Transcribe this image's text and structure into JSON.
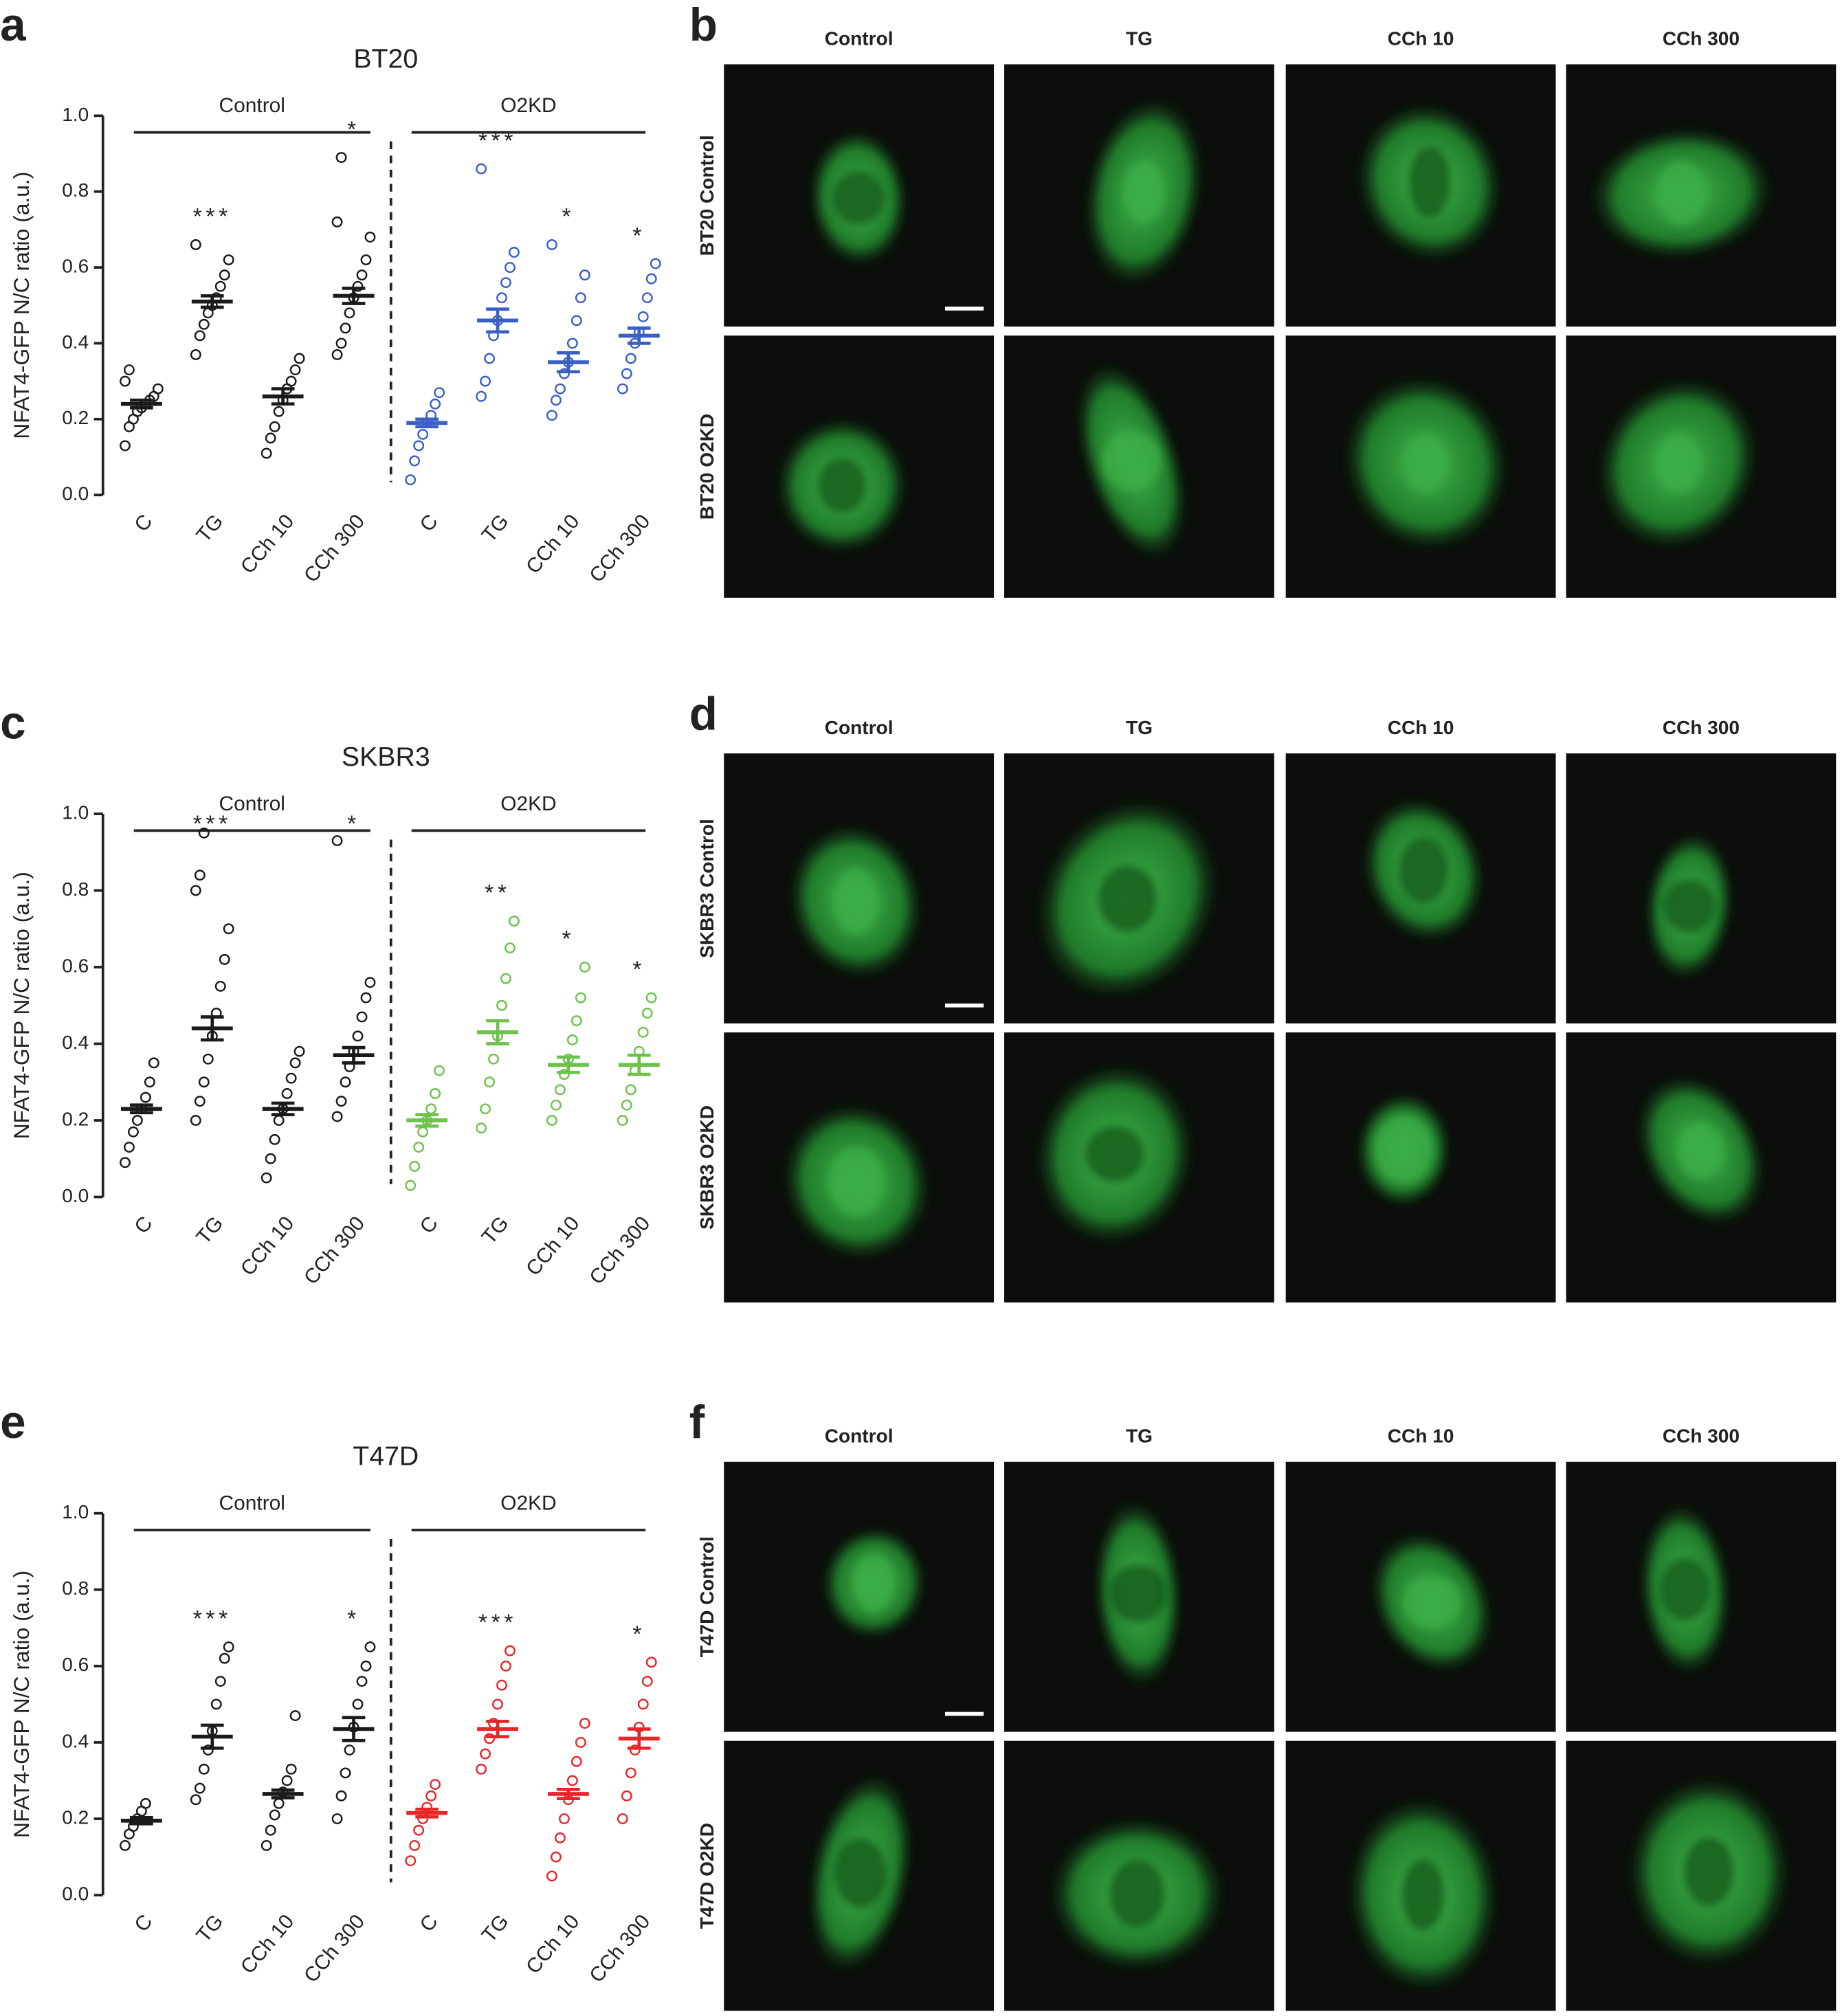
{
  "chart_data": [
    {
      "type": "dotplot",
      "panel_label": "a",
      "title": "BT20",
      "y_label": "NFAT4-GFP N/C ratio (a.u.)",
      "ylim": [
        0,
        1
      ],
      "yticks": [
        {
          "value": 0,
          "label": "0.0"
        },
        0.2,
        0.4,
        0.6,
        0.8,
        {
          "value": 1,
          "label": "1.0"
        }
      ],
      "groups": [
        {
          "label": "Control",
          "color": "#1a1a1a",
          "categories": [
            "C",
            "TG",
            "CCh 10",
            "CCh 300"
          ],
          "means": [
            0.24,
            0.51,
            0.26,
            0.525
          ],
          "sems": [
            0.01,
            0.015,
            0.02,
            0.02
          ],
          "points": [
            [
              0.13,
              0.18,
              0.2,
              0.22,
              0.23,
              0.24,
              0.25,
              0.26,
              0.28,
              0.3,
              0.33
            ],
            [
              0.37,
              0.42,
              0.45,
              0.48,
              0.5,
              0.52,
              0.55,
              0.58,
              0.62,
              0.66
            ],
            [
              0.11,
              0.15,
              0.18,
              0.22,
              0.25,
              0.28,
              0.3,
              0.33,
              0.36
            ],
            [
              0.37,
              0.4,
              0.44,
              0.48,
              0.52,
              0.55,
              0.58,
              0.62,
              0.68,
              0.72,
              0.89
            ]
          ],
          "stars": [
            null,
            "***",
            null,
            "*"
          ]
        },
        {
          "label": "O2KD",
          "color": "#3a5fc4",
          "categories": [
            "C",
            "TG",
            "CCh 10",
            "CCh 300"
          ],
          "means": [
            0.19,
            0.46,
            0.35,
            0.42
          ],
          "sems": [
            0.01,
            0.03,
            0.025,
            0.02
          ],
          "points": [
            [
              0.04,
              0.09,
              0.13,
              0.16,
              0.19,
              0.21,
              0.24,
              0.27
            ],
            [
              0.26,
              0.3,
              0.36,
              0.42,
              0.46,
              0.52,
              0.56,
              0.6,
              0.64,
              0.86
            ],
            [
              0.21,
              0.25,
              0.28,
              0.32,
              0.35,
              0.4,
              0.46,
              0.52,
              0.58,
              0.66
            ],
            [
              0.28,
              0.32,
              0.36,
              0.4,
              0.43,
              0.47,
              0.52,
              0.57,
              0.61
            ]
          ],
          "stars": [
            null,
            "***",
            "*",
            "*"
          ]
        }
      ]
    },
    {
      "type": "dotplot",
      "panel_label": "c",
      "title": "SKBR3",
      "y_label": "NFAT4-GFP N/C ratio (a.u.)",
      "ylim": [
        0,
        1
      ],
      "yticks": [
        {
          "value": 0,
          "label": "0.0"
        },
        0.2,
        0.4,
        0.6,
        0.8,
        {
          "value": 1,
          "label": "1.0"
        }
      ],
      "groups": [
        {
          "label": "Control",
          "color": "#1a1a1a",
          "categories": [
            "C",
            "TG",
            "CCh 10",
            "CCh 300"
          ],
          "means": [
            0.23,
            0.44,
            0.23,
            0.37
          ],
          "sems": [
            0.01,
            0.03,
            0.015,
            0.02
          ],
          "points": [
            [
              0.09,
              0.13,
              0.17,
              0.2,
              0.23,
              0.26,
              0.3,
              0.35
            ],
            [
              0.2,
              0.25,
              0.3,
              0.36,
              0.42,
              0.48,
              0.55,
              0.62,
              0.7,
              0.8,
              0.84,
              0.95
            ],
            [
              0.05,
              0.1,
              0.15,
              0.2,
              0.23,
              0.27,
              0.31,
              0.35,
              0.38
            ],
            [
              0.21,
              0.25,
              0.3,
              0.34,
              0.38,
              0.42,
              0.47,
              0.52,
              0.56,
              0.93
            ]
          ],
          "stars": [
            null,
            "***",
            null,
            "*"
          ]
        },
        {
          "label": "O2KD",
          "color": "#6cc24a",
          "categories": [
            "C",
            "TG",
            "CCh 10",
            "CCh 300"
          ],
          "means": [
            0.2,
            0.43,
            0.345,
            0.345
          ],
          "sems": [
            0.015,
            0.03,
            0.02,
            0.025
          ],
          "points": [
            [
              0.03,
              0.08,
              0.13,
              0.17,
              0.2,
              0.23,
              0.27,
              0.33
            ],
            [
              0.18,
              0.23,
              0.3,
              0.36,
              0.42,
              0.5,
              0.57,
              0.65,
              0.72
            ],
            [
              0.2,
              0.24,
              0.28,
              0.32,
              0.36,
              0.41,
              0.46,
              0.52,
              0.6
            ],
            [
              0.2,
              0.24,
              0.28,
              0.33,
              0.38,
              0.43,
              0.48,
              0.52
            ]
          ],
          "stars": [
            null,
            "**",
            "*",
            "*"
          ]
        }
      ]
    },
    {
      "type": "dotplot",
      "panel_label": "e",
      "title": "T47D",
      "y_label": "NFAT4-GFP N/C ratio (a.u.)",
      "ylim": [
        0,
        1
      ],
      "yticks": [
        {
          "value": 0,
          "label": "0.0"
        },
        0.2,
        0.4,
        0.6,
        0.8,
        {
          "value": 1,
          "label": "1.0"
        }
      ],
      "groups": [
        {
          "label": "Control",
          "color": "#1a1a1a",
          "categories": [
            "C",
            "TG",
            "CCh 10",
            "CCh 300"
          ],
          "means": [
            0.195,
            0.415,
            0.265,
            0.435
          ],
          "sems": [
            0.008,
            0.03,
            0.01,
            0.03
          ],
          "points": [
            [
              0.13,
              0.16,
              0.18,
              0.2,
              0.22,
              0.24
            ],
            [
              0.25,
              0.28,
              0.33,
              0.38,
              0.43,
              0.5,
              0.56,
              0.62,
              0.65
            ],
            [
              0.13,
              0.17,
              0.21,
              0.24,
              0.27,
              0.3,
              0.33,
              0.47
            ],
            [
              0.2,
              0.26,
              0.32,
              0.38,
              0.44,
              0.5,
              0.56,
              0.6,
              0.65
            ]
          ],
          "stars": [
            null,
            "***",
            null,
            "*"
          ]
        },
        {
          "label": "O2KD",
          "color": "#e8262a",
          "categories": [
            "C",
            "TG",
            "CCh 10",
            "CCh 300"
          ],
          "means": [
            0.215,
            0.435,
            0.265,
            0.41
          ],
          "sems": [
            0.01,
            0.02,
            0.012,
            0.025
          ],
          "points": [
            [
              0.09,
              0.13,
              0.17,
              0.2,
              0.23,
              0.26,
              0.29
            ],
            [
              0.33,
              0.37,
              0.41,
              0.45,
              0.5,
              0.55,
              0.6,
              0.64
            ],
            [
              0.05,
              0.1,
              0.15,
              0.2,
              0.25,
              0.3,
              0.35,
              0.4,
              0.45
            ],
            [
              0.2,
              0.26,
              0.32,
              0.38,
              0.44,
              0.5,
              0.56,
              0.61
            ]
          ],
          "stars": [
            null,
            "***",
            null,
            "*"
          ]
        }
      ]
    }
  ],
  "image_panels": [
    {
      "panel_label": "b",
      "columns": [
        "Control",
        "TG",
        "CCh 10",
        "CCh 300"
      ],
      "rows": [
        "BT20 Control",
        "BT20 O2KD"
      ]
    },
    {
      "panel_label": "d",
      "columns": [
        "Control",
        "TG",
        "CCh 10",
        "CCh 300"
      ],
      "rows": [
        "SKBR3 Control",
        "SKBR3 O2KD"
      ]
    },
    {
      "panel_label": "f",
      "columns": [
        "Control",
        "TG",
        "CCh 10",
        "CCh 300"
      ],
      "rows": [
        "T47D Control",
        "T47D O2KD"
      ]
    }
  ]
}
